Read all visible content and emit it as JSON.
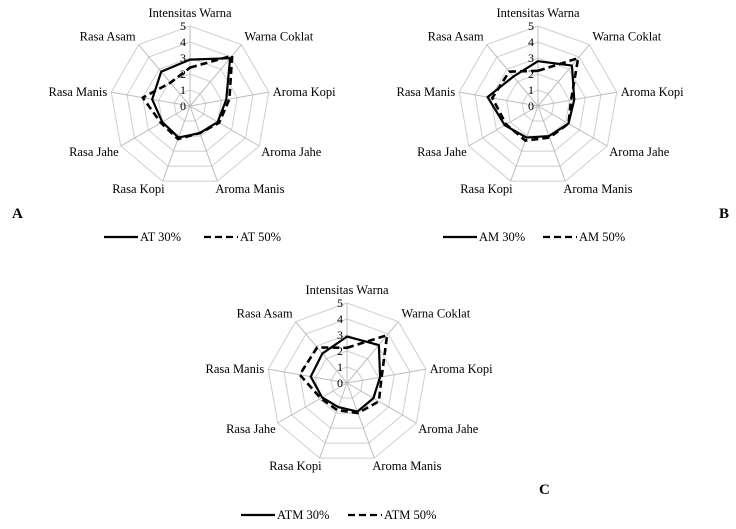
{
  "chart_data": [
    {
      "type": "radar",
      "panel": "A",
      "categories": [
        "Intensitas Warna",
        "Warna Coklat",
        "Aroma Kopi",
        "Aroma Jahe",
        "Aroma Manis",
        "Rasa  Kopi",
        "Rasa  Jahe",
        "Rasa  Manis",
        "Rasa  Asam"
      ],
      "rlim": [
        0,
        5
      ],
      "ticks": [
        "0",
        "1",
        "2",
        "3",
        "4",
        "5"
      ],
      "grid": true,
      "legend_position": "bottom",
      "series": [
        {
          "name": "AT 30%",
          "style": "solid",
          "values": [
            2.9,
            3.9,
            2.3,
            2.0,
            1.8,
            2.1,
            2.0,
            2.4,
            2.8
          ]
        },
        {
          "name": "AT 50%",
          "style": "dashed",
          "values": [
            2.4,
            4.1,
            2.5,
            2.1,
            1.8,
            2.2,
            2.1,
            3.0,
            1.9
          ]
        }
      ]
    },
    {
      "type": "radar",
      "panel": "B",
      "categories": [
        "Intensitas Warna",
        "Warna Coklat",
        "Aroma Kopi",
        "Aroma Jahe",
        "Aroma Manis",
        "Rasa  Kopi",
        "Rasa  Jahe",
        "Rasa  Manis",
        "Rasa  Asam"
      ],
      "rlim": [
        0,
        5
      ],
      "ticks": [
        "0",
        "1",
        "2",
        "3",
        "4",
        "5"
      ],
      "grid": true,
      "legend_position": "bottom",
      "series": [
        {
          "name": "AM 30%",
          "style": "solid",
          "values": [
            2.8,
            3.3,
            2.3,
            2.2,
            2.0,
            2.1,
            2.4,
            3.2,
            2.4
          ]
        },
        {
          "name": "AM 50%",
          "style": "dashed",
          "values": [
            2.2,
            3.9,
            2.1,
            2.2,
            2.1,
            2.3,
            2.3,
            2.9,
            2.8
          ]
        }
      ]
    },
    {
      "type": "radar",
      "panel": "C",
      "categories": [
        "Intensitas Warna",
        "Warna Coklat",
        "Aroma Kopi",
        "Aroma Jahe",
        "Aroma Manis",
        "Rasa  Kopi",
        "Rasa  Jahe",
        "Rasa  Manis",
        "Rasa  Asam"
      ],
      "rlim": [
        0,
        5
      ],
      "ticks": [
        "0",
        "1",
        "2",
        "3",
        "4",
        "5"
      ],
      "grid": true,
      "legend_position": "bottom",
      "series": [
        {
          "name": "ATM 30%",
          "style": "solid",
          "values": [
            2.9,
            3.1,
            2.1,
            1.9,
            1.9,
            1.6,
            1.8,
            2.3,
            2.4
          ]
        },
        {
          "name": "ATM 50%",
          "style": "dashed",
          "values": [
            2.2,
            3.9,
            2.2,
            2.3,
            2.0,
            1.8,
            1.9,
            3.0,
            2.9
          ]
        }
      ]
    }
  ]
}
